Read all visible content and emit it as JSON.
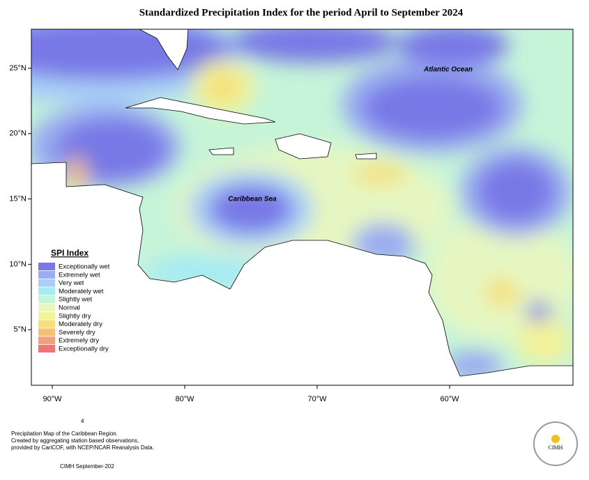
{
  "title": "Standardized Precipitation Index for the period April to September 2024",
  "map_labels": {
    "atlantic": "Atlantic Ocean",
    "caribbean": "Caribbean Sea"
  },
  "latitude_ticks": [
    "25°N",
    "20°N",
    "15°N",
    "10°N",
    "5°N"
  ],
  "longitude_ticks": [
    "90°W",
    "80°W",
    "70°W",
    "60°W"
  ],
  "legend": {
    "title": "SPI Index",
    "items": [
      {
        "label": "Exceptionally wet",
        "color": "#7878e6"
      },
      {
        "label": "Extremely wet",
        "color": "#9aacf0"
      },
      {
        "label": "Very wet",
        "color": "#a9cff7"
      },
      {
        "label": "Moderately wet",
        "color": "#a6ebf3"
      },
      {
        "label": "Slightly wet",
        "color": "#c6f4d9"
      },
      {
        "label": "Normal",
        "color": "#e6f7c1"
      },
      {
        "label": "Slightly dry",
        "color": "#f3f39a"
      },
      {
        "label": "Moderately dry",
        "color": "#f4df78"
      },
      {
        "label": "Severely dry",
        "color": "#f4c076"
      },
      {
        "label": "Extremely dry",
        "color": "#f4a077"
      },
      {
        "label": "Exceptionally dry",
        "color": "#ef7676"
      }
    ]
  },
  "footer": {
    "page": "4",
    "lines": [
      "Precipitation Map of the Caribbean Region.",
      "Created by aggregating station based observations,",
      "provided by CariCOF, with NCEP/NCAR Reanalysis Data."
    ],
    "credit": "CIMH September-202"
  },
  "logo": {
    "text": "CIMH"
  }
}
